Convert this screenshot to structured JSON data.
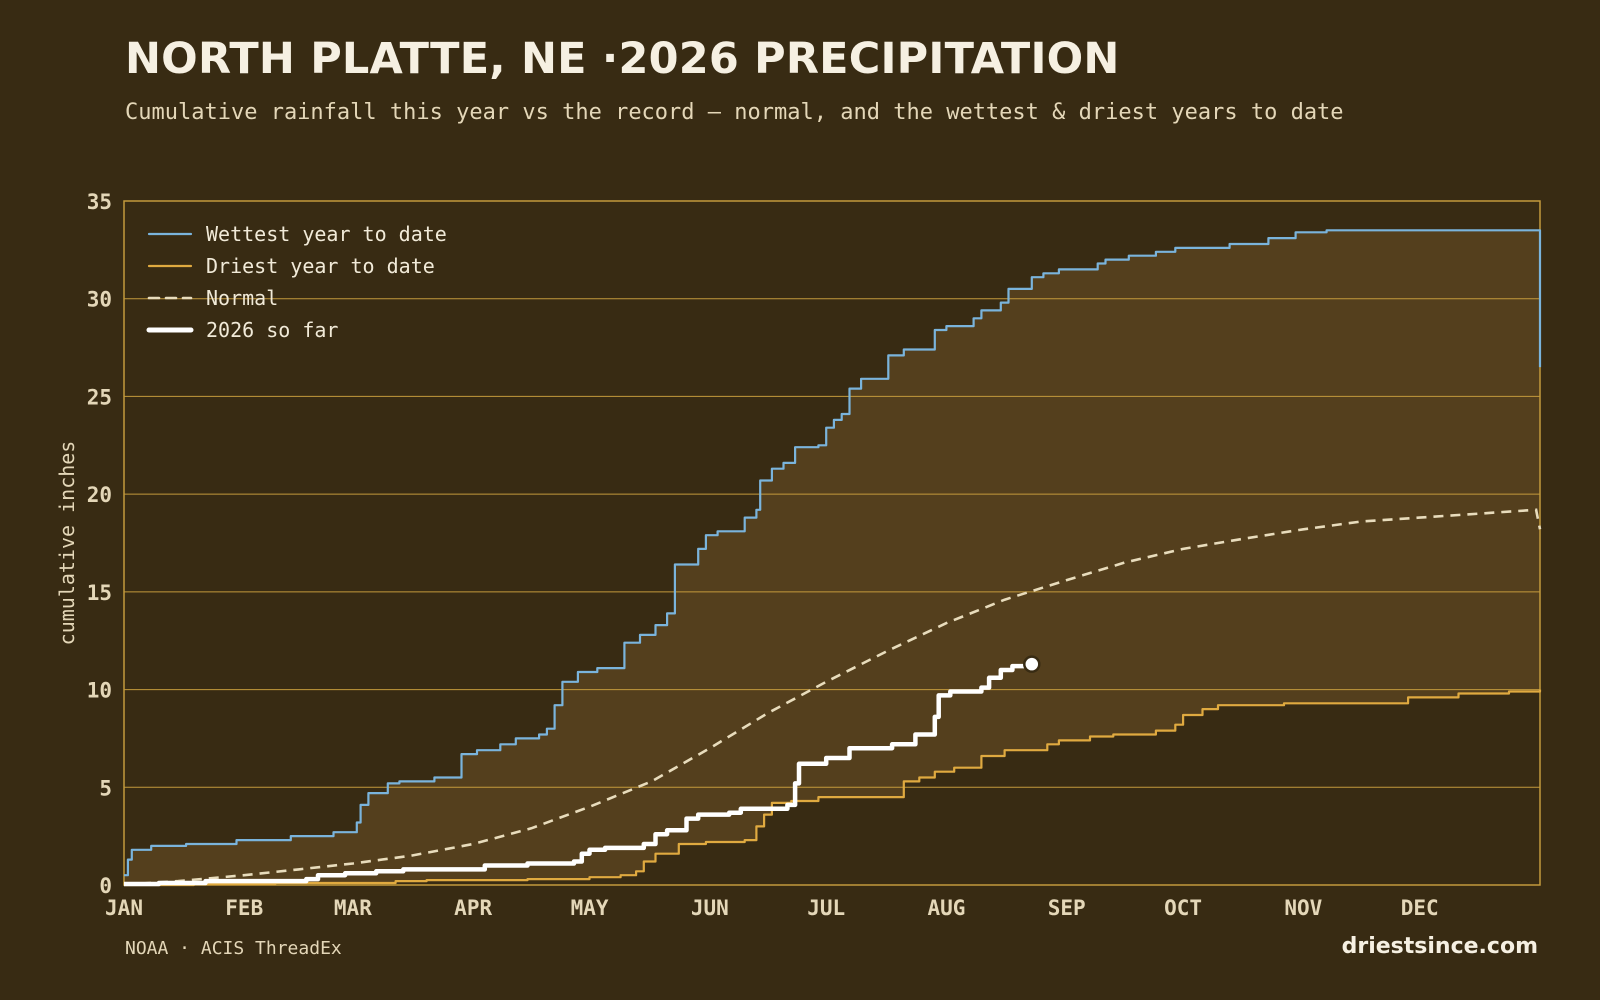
{
  "header": {
    "title": "NORTH PLATTE, NE ·2026 PRECIPITATION",
    "subtitle": "Cumulative rainfall this year vs the record — normal, and the wettest & driest years to date"
  },
  "footer": {
    "source": "NOAA · ACIS ThreadEx",
    "brand": "driestsince.com"
  },
  "colors": {
    "background": "#382b13",
    "band": "#543f1d",
    "grid": "#c39a3c",
    "wettest": "#7ab4dc",
    "driest": "#e0aa40",
    "normal": "#e8dcbc",
    "current": "#ffffff"
  },
  "chart_data": {
    "type": "line",
    "ylabel": "cumulative inches",
    "ylim": [
      0,
      35
    ],
    "yticks": [
      0,
      5,
      10,
      15,
      20,
      25,
      30,
      35
    ],
    "xlim": [
      1,
      366
    ],
    "xticks": [
      {
        "label": "JAN",
        "day": 1
      },
      {
        "label": "FEB",
        "day": 32
      },
      {
        "label": "MAR",
        "day": 60
      },
      {
        "label": "APR",
        "day": 91
      },
      {
        "label": "MAY",
        "day": 121
      },
      {
        "label": "JUN",
        "day": 152
      },
      {
        "label": "JUL",
        "day": 182
      },
      {
        "label": "AUG",
        "day": 213
      },
      {
        "label": "SEP",
        "day": 244
      },
      {
        "label": "OCT",
        "day": 274
      },
      {
        "label": "NOV",
        "day": 305
      },
      {
        "label": "DEC",
        "day": 335
      }
    ],
    "legend_position": "top-left",
    "series": [
      {
        "name": "Wettest year to date",
        "style": "step",
        "points": [
          [
            1,
            0.5
          ],
          [
            2,
            1.3
          ],
          [
            3,
            1.8
          ],
          [
            8,
            2.0
          ],
          [
            17,
            2.1
          ],
          [
            30,
            2.3
          ],
          [
            44,
            2.5
          ],
          [
            55,
            2.7
          ],
          [
            61,
            3.2
          ],
          [
            62,
            4.1
          ],
          [
            64,
            4.7
          ],
          [
            69,
            5.2
          ],
          [
            72,
            5.3
          ],
          [
            81,
            5.5
          ],
          [
            88,
            6.7
          ],
          [
            92,
            6.9
          ],
          [
            98,
            7.2
          ],
          [
            102,
            7.5
          ],
          [
            108,
            7.7
          ],
          [
            110,
            8.0
          ],
          [
            112,
            9.2
          ],
          [
            114,
            10.4
          ],
          [
            118,
            10.9
          ],
          [
            123,
            11.1
          ],
          [
            130,
            12.4
          ],
          [
            134,
            12.8
          ],
          [
            138,
            13.3
          ],
          [
            141,
            13.9
          ],
          [
            143,
            16.4
          ],
          [
            149,
            17.2
          ],
          [
            151,
            17.9
          ],
          [
            154,
            18.1
          ],
          [
            161,
            18.8
          ],
          [
            164,
            19.2
          ],
          [
            165,
            20.7
          ],
          [
            168,
            21.3
          ],
          [
            171,
            21.6
          ],
          [
            174,
            22.4
          ],
          [
            180,
            22.5
          ],
          [
            182,
            23.4
          ],
          [
            184,
            23.8
          ],
          [
            186,
            24.1
          ],
          [
            188,
            25.4
          ],
          [
            191,
            25.9
          ],
          [
            198,
            27.1
          ],
          [
            202,
            27.4
          ],
          [
            210,
            28.4
          ],
          [
            213,
            28.6
          ],
          [
            220,
            29.0
          ],
          [
            222,
            29.4
          ],
          [
            227,
            29.8
          ],
          [
            229,
            30.5
          ],
          [
            235,
            31.1
          ],
          [
            238,
            31.3
          ],
          [
            242,
            31.5
          ],
          [
            252,
            31.8
          ],
          [
            254,
            32.0
          ],
          [
            260,
            32.2
          ],
          [
            267,
            32.4
          ],
          [
            272,
            32.6
          ],
          [
            286,
            32.8
          ],
          [
            296,
            33.1
          ],
          [
            303,
            33.4
          ],
          [
            311,
            33.5
          ],
          [
            365,
            33.5
          ],
          [
            366,
            26.5
          ]
        ]
      },
      {
        "name": "Driest year to date",
        "style": "step",
        "points": [
          [
            1,
            0.0
          ],
          [
            19,
            0.05
          ],
          [
            40,
            0.1
          ],
          [
            71,
            0.2
          ],
          [
            79,
            0.25
          ],
          [
            105,
            0.3
          ],
          [
            121,
            0.4
          ],
          [
            129,
            0.5
          ],
          [
            133,
            0.7
          ],
          [
            135,
            1.2
          ],
          [
            138,
            1.6
          ],
          [
            144,
            2.1
          ],
          [
            151,
            2.2
          ],
          [
            161,
            2.3
          ],
          [
            164,
            3.0
          ],
          [
            166,
            3.6
          ],
          [
            168,
            4.2
          ],
          [
            173,
            4.3
          ],
          [
            180,
            4.5
          ],
          [
            202,
            5.3
          ],
          [
            206,
            5.5
          ],
          [
            210,
            5.8
          ],
          [
            215,
            6.0
          ],
          [
            222,
            6.6
          ],
          [
            228,
            6.9
          ],
          [
            239,
            7.2
          ],
          [
            242,
            7.4
          ],
          [
            250,
            7.6
          ],
          [
            256,
            7.7
          ],
          [
            267,
            7.9
          ],
          [
            272,
            8.2
          ],
          [
            274,
            8.7
          ],
          [
            279,
            9.0
          ],
          [
            283,
            9.2
          ],
          [
            300,
            9.3
          ],
          [
            332,
            9.6
          ],
          [
            345,
            9.8
          ],
          [
            358,
            9.9
          ],
          [
            366,
            10.0
          ]
        ]
      },
      {
        "name": "Normal",
        "style": "smooth",
        "points": [
          [
            1,
            0.02
          ],
          [
            15,
            0.2
          ],
          [
            32,
            0.5
          ],
          [
            46,
            0.8
          ],
          [
            60,
            1.1
          ],
          [
            75,
            1.5
          ],
          [
            91,
            2.1
          ],
          [
            106,
            2.9
          ],
          [
            121,
            4.0
          ],
          [
            137,
            5.3
          ],
          [
            152,
            7.0
          ],
          [
            167,
            8.8
          ],
          [
            182,
            10.4
          ],
          [
            198,
            12.0
          ],
          [
            213,
            13.4
          ],
          [
            228,
            14.6
          ],
          [
            244,
            15.6
          ],
          [
            259,
            16.5
          ],
          [
            274,
            17.2
          ],
          [
            289,
            17.7
          ],
          [
            305,
            18.2
          ],
          [
            320,
            18.6
          ],
          [
            335,
            18.8
          ],
          [
            350,
            19.0
          ],
          [
            365,
            19.2
          ],
          [
            366,
            18.2
          ]
        ]
      },
      {
        "name": "2026 so far",
        "style": "step",
        "points": [
          [
            1,
            0.05
          ],
          [
            10,
            0.1
          ],
          [
            22,
            0.2
          ],
          [
            48,
            0.3
          ],
          [
            51,
            0.5
          ],
          [
            58,
            0.6
          ],
          [
            66,
            0.7
          ],
          [
            73,
            0.8
          ],
          [
            94,
            1.0
          ],
          [
            105,
            1.1
          ],
          [
            117,
            1.2
          ],
          [
            119,
            1.6
          ],
          [
            121,
            1.8
          ],
          [
            125,
            1.9
          ],
          [
            135,
            2.1
          ],
          [
            138,
            2.6
          ],
          [
            141,
            2.8
          ],
          [
            146,
            3.4
          ],
          [
            149,
            3.6
          ],
          [
            157,
            3.7
          ],
          [
            160,
            3.9
          ],
          [
            172,
            4.1
          ],
          [
            174,
            5.2
          ],
          [
            175,
            6.2
          ],
          [
            182,
            6.5
          ],
          [
            188,
            7.0
          ],
          [
            199,
            7.2
          ],
          [
            205,
            7.7
          ],
          [
            210,
            8.6
          ],
          [
            211,
            9.7
          ],
          [
            214,
            9.9
          ],
          [
            222,
            10.1
          ],
          [
            224,
            10.6
          ],
          [
            227,
            11.0
          ],
          [
            230,
            11.2
          ],
          [
            235,
            11.3
          ]
        ]
      }
    ]
  }
}
